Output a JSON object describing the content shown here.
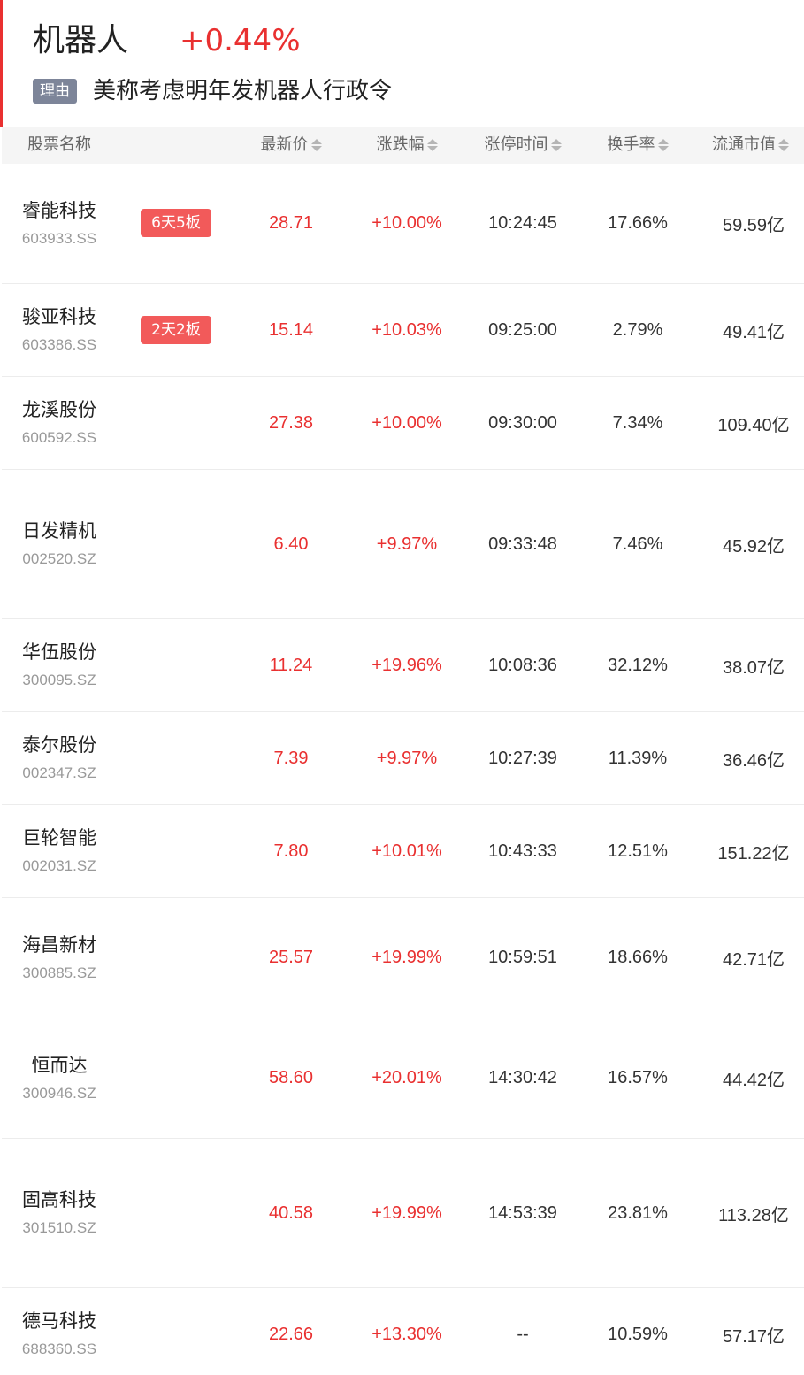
{
  "header": {
    "topic_name": "机器人",
    "topic_change": "+0.44%",
    "reason_tag": "理由",
    "reason_text": "美称考虑明年发机器人行政令",
    "accent_color": "#e93030"
  },
  "columns": [
    {
      "key": "name",
      "label": "股票名称",
      "sortable": false
    },
    {
      "key": "price",
      "label": "最新价",
      "sortable": true
    },
    {
      "key": "change",
      "label": "涨跌幅",
      "sortable": true
    },
    {
      "key": "limit_time",
      "label": "涨停时间",
      "sortable": true
    },
    {
      "key": "turnover",
      "label": "换手率",
      "sortable": true
    },
    {
      "key": "float_cap",
      "label": "流通市值",
      "sortable": true
    }
  ],
  "rows": [
    {
      "name": "睿能科技",
      "code": "603933.SS",
      "badge": "6天5板",
      "price": "28.71",
      "change": "+10.00%",
      "limit_time": "10:24:45",
      "turnover": "17.66%",
      "float_cap": "59.59亿"
    },
    {
      "name": "骏亚科技",
      "code": "603386.SS",
      "badge": "2天2板",
      "price": "15.14",
      "change": "+10.03%",
      "limit_time": "09:25:00",
      "turnover": "2.79%",
      "float_cap": "49.41亿"
    },
    {
      "name": "龙溪股份",
      "code": "600592.SS",
      "badge": "",
      "price": "27.38",
      "change": "+10.00%",
      "limit_time": "09:30:00",
      "turnover": "7.34%",
      "float_cap": "109.40亿"
    },
    {
      "name": "日发精机",
      "code": "002520.SZ",
      "badge": "",
      "price": "6.40",
      "change": "+9.97%",
      "limit_time": "09:33:48",
      "turnover": "7.46%",
      "float_cap": "45.92亿"
    },
    {
      "name": "华伍股份",
      "code": "300095.SZ",
      "badge": "",
      "price": "11.24",
      "change": "+19.96%",
      "limit_time": "10:08:36",
      "turnover": "32.12%",
      "float_cap": "38.07亿"
    },
    {
      "name": "泰尔股份",
      "code": "002347.SZ",
      "badge": "",
      "price": "7.39",
      "change": "+9.97%",
      "limit_time": "10:27:39",
      "turnover": "11.39%",
      "float_cap": "36.46亿"
    },
    {
      "name": "巨轮智能",
      "code": "002031.SZ",
      "badge": "",
      "price": "7.80",
      "change": "+10.01%",
      "limit_time": "10:43:33",
      "turnover": "12.51%",
      "float_cap": "151.22亿"
    },
    {
      "name": "海昌新材",
      "code": "300885.SZ",
      "badge": "",
      "price": "25.57",
      "change": "+19.99%",
      "limit_time": "10:59:51",
      "turnover": "18.66%",
      "float_cap": "42.71亿"
    },
    {
      "name": "恒而达",
      "code": "300946.SZ",
      "badge": "",
      "price": "58.60",
      "change": "+20.01%",
      "limit_time": "14:30:42",
      "turnover": "16.57%",
      "float_cap": "44.42亿"
    },
    {
      "name": "固高科技",
      "code": "301510.SZ",
      "badge": "",
      "price": "40.58",
      "change": "+19.99%",
      "limit_time": "14:53:39",
      "turnover": "23.81%",
      "float_cap": "113.28亿"
    },
    {
      "name": "德马科技",
      "code": "688360.SS",
      "badge": "",
      "price": "22.66",
      "change": "+13.30%",
      "limit_time": "--",
      "turnover": "10.59%",
      "float_cap": "57.17亿"
    }
  ]
}
